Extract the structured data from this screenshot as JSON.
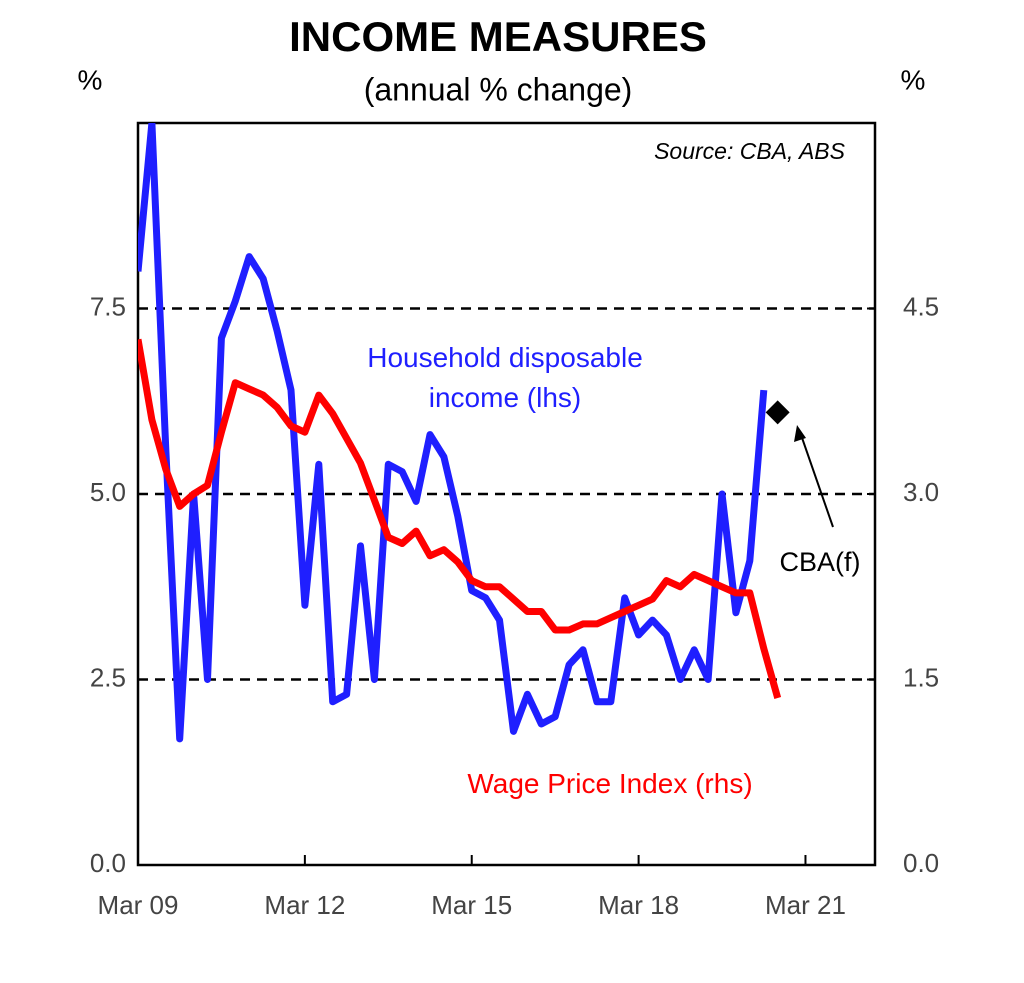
{
  "chart_data": {
    "type": "line",
    "title": "INCOME MEASURES",
    "subtitle": "(annual % change)",
    "source": "Source: CBA, ABS",
    "y_label": "%",
    "y2_label": "%",
    "x": [
      "2009-03",
      "2009-06",
      "2009-09",
      "2009-12",
      "2010-03",
      "2010-06",
      "2010-09",
      "2010-12",
      "2011-03",
      "2011-06",
      "2011-09",
      "2011-12",
      "2012-03",
      "2012-06",
      "2012-09",
      "2012-12",
      "2013-03",
      "2013-06",
      "2013-09",
      "2013-12",
      "2014-03",
      "2014-06",
      "2014-09",
      "2014-12",
      "2015-03",
      "2015-06",
      "2015-09",
      "2015-12",
      "2016-03",
      "2016-06",
      "2016-09",
      "2016-12",
      "2017-03",
      "2017-06",
      "2017-09",
      "2017-12",
      "2018-03",
      "2018-06",
      "2018-09",
      "2018-12",
      "2019-03",
      "2019-06",
      "2019-09",
      "2019-12",
      "2020-03",
      "2020-06",
      "2020-09"
    ],
    "xlim": [
      "2009-03",
      "2022-06"
    ],
    "xticks": [
      {
        "value": "2009-03",
        "label": "Mar 09"
      },
      {
        "value": "2012-03",
        "label": "Mar 12"
      },
      {
        "value": "2015-03",
        "label": "Mar 15"
      },
      {
        "value": "2018-03",
        "label": "Mar 18"
      },
      {
        "value": "2021-03",
        "label": "Mar 21"
      }
    ],
    "ylim": [
      0,
      10
    ],
    "yticks": [
      {
        "value": 0,
        "label": "0.0"
      },
      2.5,
      {
        "value": 5,
        "label": "5.0"
      },
      7.5
    ],
    "y2lim": [
      0,
      6
    ],
    "y2ticks": [
      {
        "value": 0,
        "label": "0.0"
      },
      1.5,
      {
        "value": 3,
        "label": "3.0"
      },
      4.5
    ],
    "grid": true,
    "series": [
      {
        "name": "Household disposable income (lhs)",
        "color": "#1f1fff",
        "axis": "y",
        "values": [
          8.0,
          10.0,
          5.6,
          1.7,
          5.0,
          2.5,
          7.1,
          7.6,
          8.2,
          7.9,
          7.2,
          6.4,
          3.5,
          5.4,
          2.2,
          2.3,
          4.3,
          2.5,
          5.4,
          5.3,
          4.9,
          5.8,
          5.5,
          4.7,
          3.7,
          3.6,
          3.3,
          1.8,
          2.3,
          1.9,
          2.0,
          2.7,
          2.9,
          2.2,
          2.2,
          3.6,
          3.1,
          3.3,
          3.1,
          2.5,
          2.9,
          2.5,
          5.0,
          3.4,
          4.1,
          6.4,
          null
        ]
      },
      {
        "name": "Wage Price Index (rhs)",
        "color": "#ff0000",
        "axis": "y2",
        "values": [
          4.25,
          3.6,
          3.2,
          2.9,
          3.0,
          3.07,
          3.5,
          3.9,
          3.85,
          3.8,
          3.7,
          3.55,
          3.5,
          3.8,
          3.65,
          3.45,
          3.25,
          2.95,
          2.65,
          2.6,
          2.7,
          2.5,
          2.55,
          2.45,
          2.3,
          2.25,
          2.25,
          2.15,
          2.05,
          2.05,
          1.9,
          1.9,
          1.95,
          1.95,
          2.0,
          2.05,
          2.1,
          2.15,
          2.3,
          2.25,
          2.35,
          2.3,
          2.25,
          2.2,
          2.2,
          1.75,
          1.35
        ]
      }
    ],
    "forecast": {
      "name": "CBA(f)",
      "x": "2020-09",
      "value": 6.1,
      "color": "#000000"
    }
  }
}
